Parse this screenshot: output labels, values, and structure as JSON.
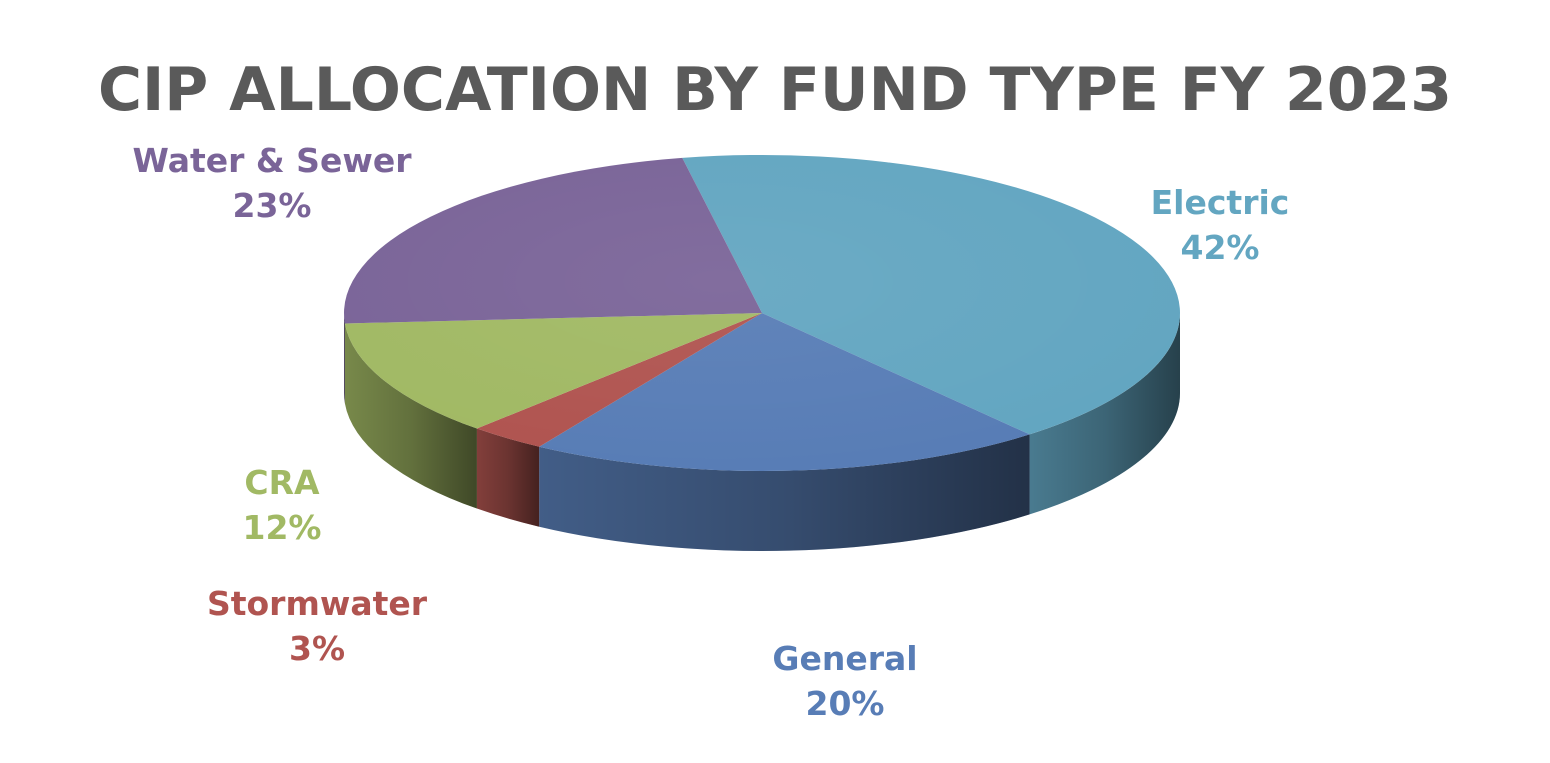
{
  "chart_data": {
    "type": "pie",
    "style": "3d",
    "title": "CIP ALLOCATION BY FUND TYPE FY 2023",
    "categories": [
      "Electric",
      "General",
      "Stormwater",
      "CRA",
      "Water & Sewer"
    ],
    "values": [
      42,
      20,
      3,
      12,
      23
    ],
    "value_labels": [
      "42%",
      "20%",
      "3%",
      "12%",
      "23%"
    ],
    "colors": [
      "#63a6c1",
      "#587db6",
      "#b05450",
      "#a1b964",
      "#7a6498"
    ],
    "legend": "none"
  }
}
